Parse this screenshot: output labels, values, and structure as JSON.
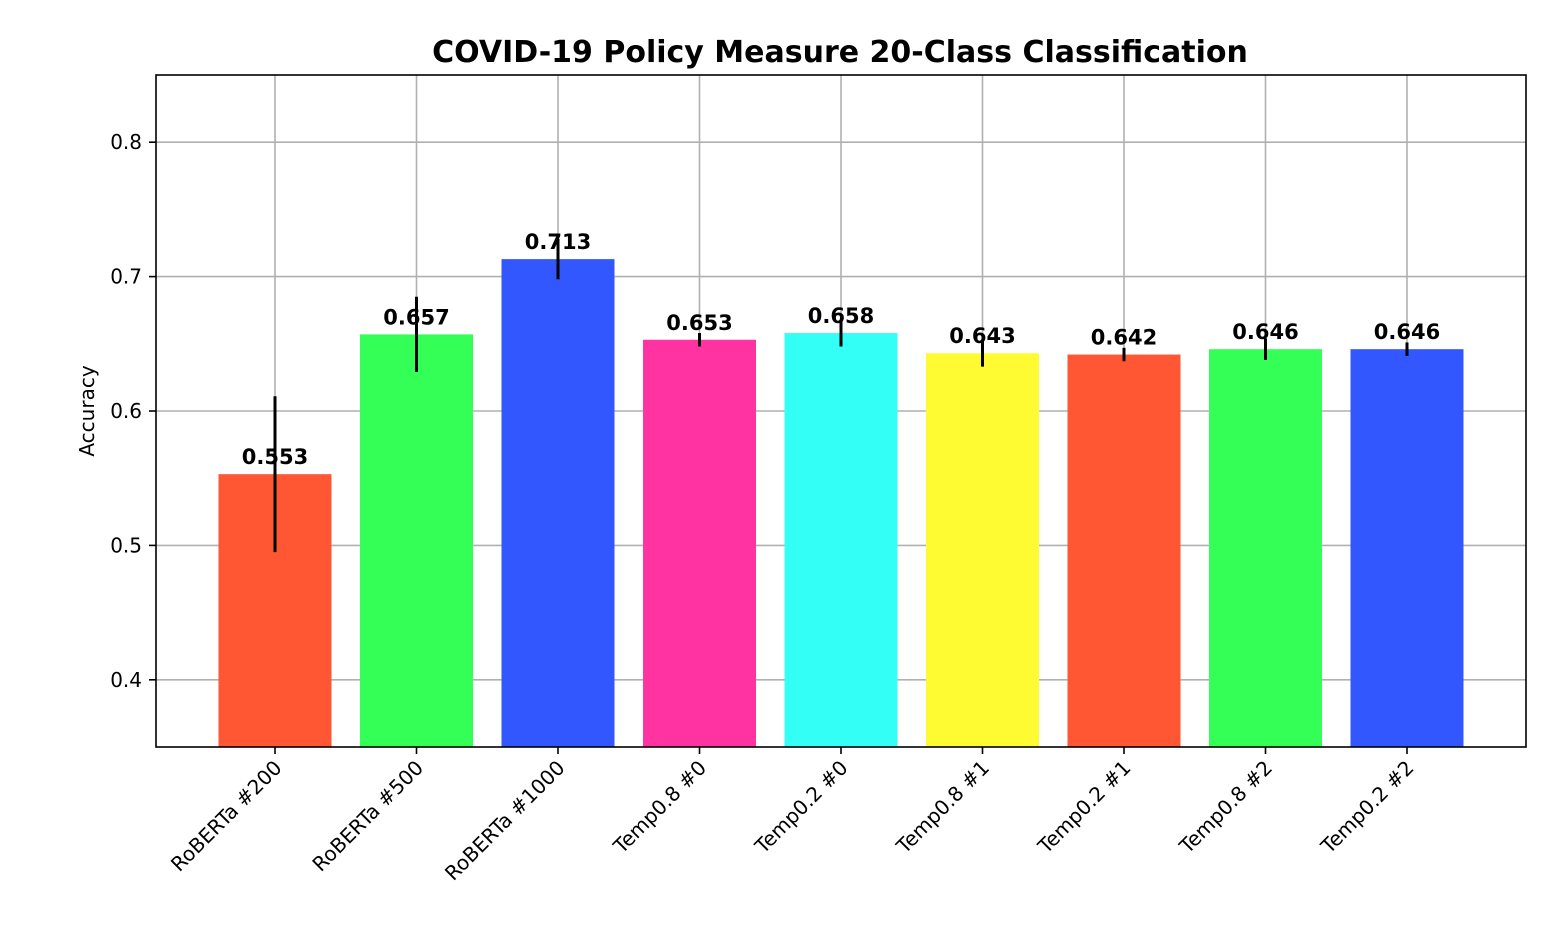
{
  "chart_data": {
    "type": "bar",
    "title": "COVID-19 Policy Measure 20-Class Classification",
    "xlabel": "",
    "ylabel": "Accuracy",
    "ylim": [
      0.35,
      0.85
    ],
    "yticks": [
      0.4,
      0.5,
      0.6,
      0.7,
      0.8
    ],
    "ytick_labels": [
      "0.4",
      "0.5",
      "0.6",
      "0.7",
      "0.8"
    ],
    "grid": true,
    "categories": [
      "RoBERTa #200",
      "RoBERTa #500",
      "RoBERTa #1000",
      "Temp0.8 #0",
      "Temp0.2 #0",
      "Temp0.8 #1",
      "Temp0.2 #1",
      "Temp0.8 #2",
      "Temp0.2 #2"
    ],
    "values": [
      0.553,
      0.657,
      0.713,
      0.653,
      0.658,
      0.643,
      0.642,
      0.646,
      0.646
    ],
    "value_labels": [
      "0.553",
      "0.657",
      "0.713",
      "0.653",
      "0.658",
      "0.643",
      "0.642",
      "0.646",
      "0.646"
    ],
    "errors": [
      0.058,
      0.028,
      0.015,
      0.005,
      0.01,
      0.01,
      0.005,
      0.008,
      0.005
    ],
    "colors": [
      "#ff5733",
      "#33ff57",
      "#3357ff",
      "#ff33a1",
      "#33fff6",
      "#fffb33",
      "#ff5733",
      "#33ff57",
      "#3357ff"
    ]
  }
}
